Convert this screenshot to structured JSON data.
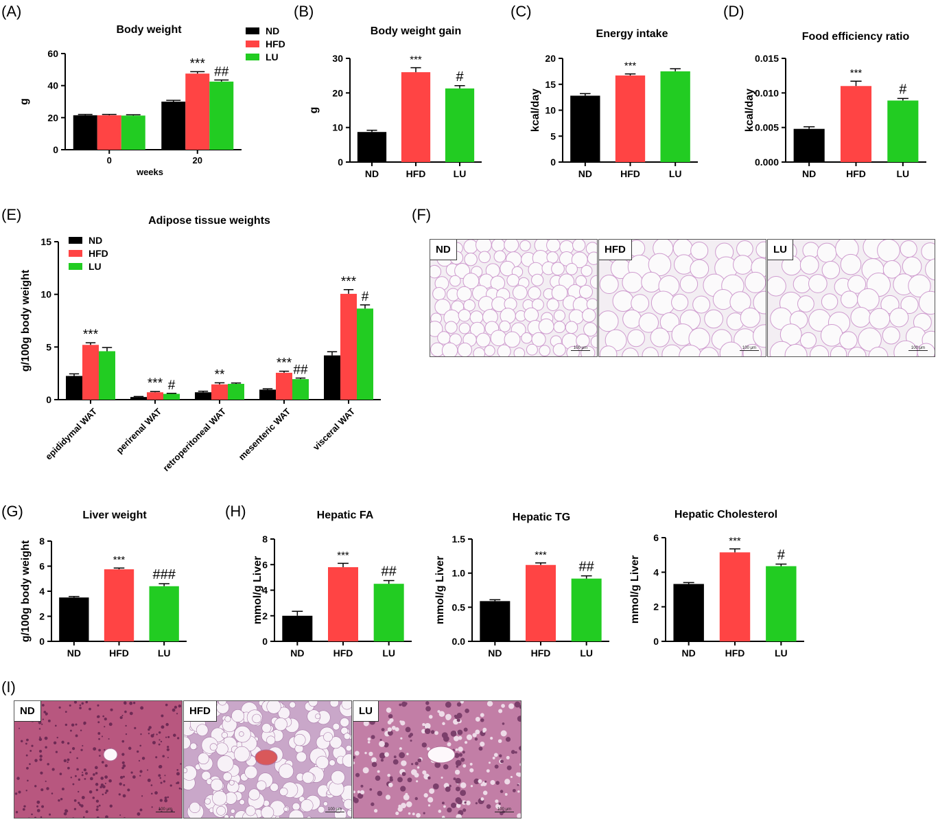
{
  "panel_labels": {
    "A": "(A)",
    "B": "(B)",
    "C": "(C)",
    "D": "(D)",
    "E": "(E)",
    "F": "(F)",
    "G": "(G)",
    "H": "(H)",
    "I": "(I)"
  },
  "colors": {
    "ND": "#000000",
    "HFD": "#ff4444",
    "LU": "#22cc22"
  },
  "groups": [
    "ND",
    "HFD",
    "LU"
  ],
  "chart_data": [
    {
      "id": "A",
      "type": "bar",
      "title": "Body weight",
      "xlabel": "weeks",
      "ylabel": "g",
      "ylim": [
        0,
        60
      ],
      "yticks": [
        "0",
        "20",
        "40",
        "60"
      ],
      "categories": [
        "0",
        "20"
      ],
      "series": [
        {
          "name": "ND",
          "values": [
            21.5,
            30
          ],
          "err": [
            0.5,
            0.8
          ]
        },
        {
          "name": "HFD",
          "values": [
            21.5,
            47.5
          ],
          "err": [
            0.5,
            1.2
          ]
        },
        {
          "name": "LU",
          "values": [
            21.3,
            42.5
          ],
          "err": [
            0.5,
            1.0
          ]
        }
      ],
      "annotations": [
        {
          "series": 1,
          "cat": 1,
          "text": "***"
        },
        {
          "series": 2,
          "cat": 1,
          "text": "##"
        }
      ],
      "legend": "top-right"
    },
    {
      "id": "B",
      "type": "bar",
      "title": "Body weight gain",
      "ylabel": "g",
      "ylim": [
        0,
        30
      ],
      "yticks": [
        "0",
        "10",
        "20",
        "30"
      ],
      "categories": [
        "ND",
        "HFD",
        "LU"
      ],
      "values": [
        8.7,
        26,
        21.3
      ],
      "err": [
        0.5,
        1.3,
        0.8
      ],
      "annotations": [
        "",
        "***",
        "#"
      ]
    },
    {
      "id": "C",
      "type": "bar",
      "title": "Energy intake",
      "ylabel": "kcal/day",
      "ylim": [
        0,
        20
      ],
      "yticks": [
        "0",
        "5",
        "10",
        "15",
        "20"
      ],
      "categories": [
        "ND",
        "HFD",
        "LU"
      ],
      "values": [
        12.8,
        16.7,
        17.5
      ],
      "err": [
        0.4,
        0.3,
        0.5
      ],
      "annotations": [
        "",
        "***",
        ""
      ]
    },
    {
      "id": "D",
      "type": "bar",
      "title": "Food efficiency ratio",
      "ylabel": "kcal/day",
      "ylim": [
        0,
        0.015
      ],
      "yticks": [
        "0.000",
        "0.005",
        "0.010",
        "0.015"
      ],
      "categories": [
        "ND",
        "HFD",
        "LU"
      ],
      "values": [
        0.0048,
        0.011,
        0.0089
      ],
      "err": [
        0.0003,
        0.0007,
        0.0003
      ],
      "annotations": [
        "",
        "***",
        "#"
      ]
    },
    {
      "id": "E",
      "type": "bar",
      "title": "Adipose tissue weights",
      "ylabel": "g/100g body weight",
      "ylim": [
        0,
        15
      ],
      "yticks": [
        "0",
        "5",
        "10",
        "15"
      ],
      "categories": [
        "epididymal WAT",
        "perirenal WAT",
        "retroperitoneal WAT",
        "mesenteric WAT",
        "visceral WAT"
      ],
      "series": [
        {
          "name": "ND",
          "values": [
            2.25,
            0.25,
            0.7,
            0.95,
            4.2
          ],
          "err": [
            0.2,
            0.05,
            0.1,
            0.08,
            0.35
          ]
        },
        {
          "name": "HFD",
          "values": [
            5.2,
            0.7,
            1.45,
            2.55,
            10.05
          ],
          "err": [
            0.2,
            0.07,
            0.15,
            0.15,
            0.4
          ]
        },
        {
          "name": "LU",
          "values": [
            4.6,
            0.55,
            1.5,
            1.95,
            8.65
          ],
          "err": [
            0.35,
            0.05,
            0.08,
            0.1,
            0.35
          ]
        }
      ],
      "annotations": [
        {
          "series": 1,
          "cat": 0,
          "text": "***"
        },
        {
          "series": 1,
          "cat": 1,
          "text": "***"
        },
        {
          "series": 2,
          "cat": 1,
          "text": "#"
        },
        {
          "series": 1,
          "cat": 2,
          "text": "**"
        },
        {
          "series": 1,
          "cat": 3,
          "text": "***"
        },
        {
          "series": 2,
          "cat": 3,
          "text": "##"
        },
        {
          "series": 1,
          "cat": 4,
          "text": "***"
        },
        {
          "series": 2,
          "cat": 4,
          "text": "#"
        }
      ],
      "legend": "top-left"
    },
    {
      "id": "G",
      "type": "bar",
      "title": "Liver weight",
      "ylabel": "g/100g body weight",
      "ylim": [
        0,
        8
      ],
      "yticks": [
        "0",
        "2",
        "4",
        "6",
        "8"
      ],
      "categories": [
        "ND",
        "HFD",
        "LU"
      ],
      "values": [
        3.5,
        5.75,
        4.4
      ],
      "err": [
        0.08,
        0.1,
        0.2
      ],
      "annotations": [
        "",
        "***",
        "###"
      ]
    },
    {
      "id": "H1",
      "type": "bar",
      "title": "Hepatic FA",
      "ylabel": "mmol/g Liver",
      "ylim": [
        0,
        8
      ],
      "yticks": [
        "0",
        "2",
        "4",
        "6",
        "8"
      ],
      "categories": [
        "ND",
        "HFD",
        "LU"
      ],
      "values": [
        2.0,
        5.8,
        4.5
      ],
      "err": [
        0.35,
        0.3,
        0.25
      ],
      "annotations": [
        "",
        "***",
        "##"
      ]
    },
    {
      "id": "H2",
      "type": "bar",
      "title": "Hepatic TG",
      "ylabel": "mmol/g Liver",
      "ylim": [
        0,
        1.5
      ],
      "yticks": [
        "0.0",
        "0.5",
        "1.0",
        "1.5"
      ],
      "categories": [
        "ND",
        "HFD",
        "LU"
      ],
      "values": [
        0.59,
        1.12,
        0.92
      ],
      "err": [
        0.02,
        0.03,
        0.04
      ],
      "annotations": [
        "",
        "***",
        "##"
      ]
    },
    {
      "id": "H3",
      "type": "bar",
      "title": "Hepatic Cholesterol",
      "ylabel": "mmol/g Liver",
      "ylim": [
        0,
        6
      ],
      "yticks": [
        "0",
        "2",
        "4",
        "6"
      ],
      "categories": [
        "ND",
        "HFD",
        "LU"
      ],
      "values": [
        3.32,
        5.15,
        4.35
      ],
      "err": [
        0.08,
        0.2,
        0.12
      ],
      "annotations": [
        "",
        "***",
        "#"
      ]
    }
  ],
  "micrographs": {
    "F": [
      {
        "tag": "ND",
        "scale": "100 μm"
      },
      {
        "tag": "HFD",
        "scale": "100 μm"
      },
      {
        "tag": "LU",
        "scale": "100 μm"
      }
    ],
    "I": [
      {
        "tag": "ND",
        "scale": "100 μm"
      },
      {
        "tag": "HFD",
        "scale": "100 μm"
      },
      {
        "tag": "LU",
        "scale": "100 μm"
      }
    ]
  }
}
